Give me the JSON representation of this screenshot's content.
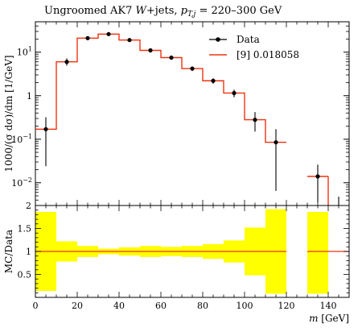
{
  "chart_data": [
    {
      "type": "line",
      "title_parts": {
        "prefix": "Ungroomed AK7 ",
        "w": "W",
        "mid": "+jets, ",
        "p": "p",
        "sub": "T,j",
        "suffix": " = 220–300 GeV"
      },
      "ylabel": "1000/(σ dσ)/dm [1/GeV]",
      "yscale": "log",
      "ylim": [
        0.003,
        50
      ],
      "y_ticks": [
        {
          "value": 0.01,
          "label_base": "10",
          "label_exp": "−2"
        },
        {
          "value": 0.1,
          "label_base": "10",
          "label_exp": "−1"
        },
        {
          "value": 1,
          "label_base": "1",
          "label_exp": ""
        },
        {
          "value": 10,
          "label_base": "10",
          "label_exp": "1"
        }
      ],
      "xlim": [
        0,
        150
      ],
      "legend_position": "top-right",
      "data": {
        "name": "Data",
        "color": "#000000",
        "x": [
          5,
          15,
          25,
          35,
          45,
          55,
          65,
          75,
          85,
          95,
          105,
          115,
          135
        ],
        "y": [
          0.17,
          6.0,
          21,
          26,
          19,
          11,
          7.5,
          4.2,
          2.2,
          1.15,
          0.28,
          0.085,
          0.014
        ],
        "err_up": [
          0.32,
          7.2,
          22.5,
          27.5,
          20.2,
          11.8,
          8.1,
          4.7,
          2.5,
          1.38,
          0.42,
          0.17,
          0.026
        ],
        "err_down": [
          0.024,
          4.9,
          19.5,
          24.5,
          17.8,
          10.2,
          6.9,
          3.7,
          1.9,
          0.92,
          0.15,
          0.0065,
          0.0035
        ]
      },
      "mc": {
        "name": "[9] 0.018058",
        "color": "#ee3311",
        "bin_edges": [
          0,
          10,
          20,
          30,
          40,
          50,
          60,
          70,
          80,
          90,
          100,
          110,
          120,
          130,
          140
        ],
        "values": [
          0.17,
          6.0,
          21,
          26,
          19,
          11,
          7.5,
          4.2,
          2.2,
          1.15,
          0.28,
          0.085,
          null,
          0.014
        ],
        "drop_edge": 140
      }
    },
    {
      "type": "bar",
      "ylabel": "MC/Data",
      "xlabel_var": "m",
      "xlabel_unit": " [GeV]",
      "ylim": [
        0,
        2
      ],
      "xlim": [
        0,
        150
      ],
      "y_ticks": [
        {
          "value": 0.5,
          "label": "0.5"
        },
        {
          "value": 1,
          "label": "1"
        },
        {
          "value": 1.5,
          "label": "1.5"
        },
        {
          "value": 2,
          "label": "2"
        }
      ],
      "x_ticks": [
        {
          "value": 0,
          "label": "0"
        },
        {
          "value": 20,
          "label": "20"
        },
        {
          "value": 40,
          "label": "40"
        },
        {
          "value": 60,
          "label": "60"
        },
        {
          "value": 80,
          "label": "80"
        },
        {
          "value": 100,
          "label": "100"
        },
        {
          "value": 120,
          "label": "120"
        },
        {
          "value": 140,
          "label": "140"
        }
      ],
      "band_color": "#ffff00",
      "ratio_color": "#ee3311",
      "band": [
        {
          "x0": 0,
          "x1": 10,
          "lo": 0.14,
          "hi": 1.86
        },
        {
          "x0": 10,
          "x1": 20,
          "lo": 0.78,
          "hi": 1.22
        },
        {
          "x0": 20,
          "x1": 30,
          "lo": 0.88,
          "hi": 1.12
        },
        {
          "x0": 30,
          "x1": 40,
          "lo": 0.94,
          "hi": 1.06
        },
        {
          "x0": 40,
          "x1": 50,
          "lo": 0.91,
          "hi": 1.09
        },
        {
          "x0": 50,
          "x1": 60,
          "lo": 0.88,
          "hi": 1.12
        },
        {
          "x0": 60,
          "x1": 70,
          "lo": 0.9,
          "hi": 1.1
        },
        {
          "x0": 70,
          "x1": 80,
          "lo": 0.88,
          "hi": 1.12
        },
        {
          "x0": 80,
          "x1": 90,
          "lo": 0.84,
          "hi": 1.16
        },
        {
          "x0": 90,
          "x1": 100,
          "lo": 0.76,
          "hi": 1.24
        },
        {
          "x0": 100,
          "x1": 110,
          "lo": 0.48,
          "hi": 1.52
        },
        {
          "x0": 110,
          "x1": 120,
          "lo": 0.08,
          "hi": 1.92
        },
        {
          "x0": 130,
          "x1": 140,
          "lo": 0.08,
          "hi": 1.86
        }
      ],
      "ratio_segments": [
        [
          0,
          120
        ],
        [
          130,
          150
        ]
      ]
    }
  ]
}
